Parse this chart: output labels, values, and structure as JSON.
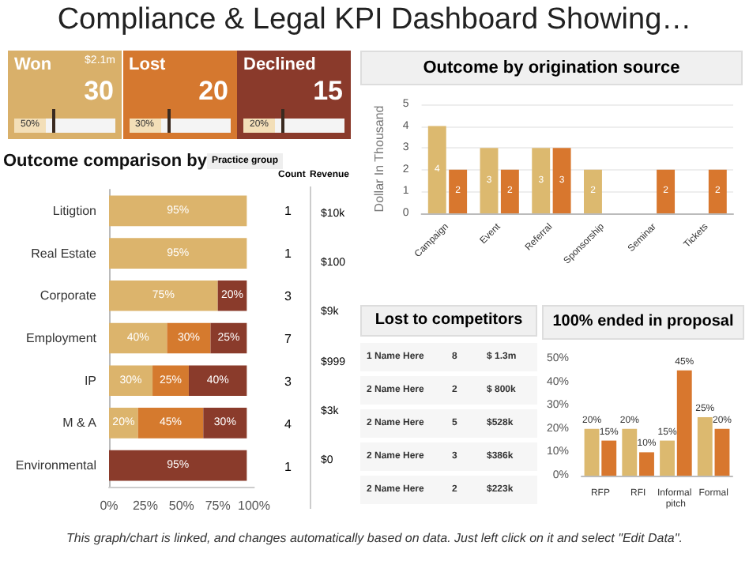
{
  "chart_data": [
    {
      "type": "other",
      "title": "Compliance & Legal KPI Dashboard Showing…",
      "categories": [
        "Won",
        "Lost",
        "Declined"
      ],
      "colors": [
        "#d9b06a",
        "#d5782f",
        "#8a3a2b"
      ],
      "annotations": [
        {
          "text": "30",
          "x": "Won"
        },
        {
          "text": "$2.1m",
          "x": "Won"
        },
        {
          "text": "50%",
          "x": "Won"
        },
        {
          "text": "20",
          "x": "Lost"
        },
        {
          "text": "30%",
          "x": "Lost"
        },
        {
          "text": "15",
          "x": "Declined"
        },
        {
          "text": "20%",
          "x": "Declined"
        },
        "This graph/chart is linked, and changes automatically based on data. Just left click on it and select \"Edit Data\"."
      ]
    },
    {
      "type": "bar",
      "orientation": "horizontal",
      "stacked": true,
      "title": "Outcome comparison by",
      "subtitle": "Practice group",
      "categories": [
        "Litigtion",
        "Real Estate",
        "Corporate",
        "Employment",
        "IP",
        "M & A",
        "Environmental"
      ],
      "series": [
        {
          "color": "#dcb46c",
          "values": [
            95,
            95,
            75,
            40,
            30,
            20,
            null
          ],
          "value_labels": [
            "95%",
            "95%",
            "75%",
            "40%",
            "30%",
            "20%",
            null
          ]
        },
        {
          "color": "#d57a2e",
          "values": [
            null,
            null,
            null,
            30,
            25,
            45,
            null
          ],
          "value_labels": [
            null,
            null,
            null,
            "30%",
            "25%",
            "45%",
            null
          ]
        },
        {
          "color": "#8a3b2b",
          "values": [
            null,
            null,
            20,
            25,
            40,
            30,
            95
          ],
          "value_labels": [
            null,
            null,
            "20%",
            "25%",
            "40%",
            "30%",
            "95%"
          ]
        }
      ],
      "xlim": [
        0,
        100
      ],
      "xticks": [
        {
          "value": 0,
          "label": "0%"
        },
        {
          "value": 25,
          "label": "25%"
        },
        {
          "value": 50,
          "label": "50%"
        },
        {
          "value": 75,
          "label": "75%"
        },
        {
          "value": 100,
          "label": "100%"
        }
      ],
      "annotations": [
        "Count",
        "Revenue",
        "1",
        "1",
        "3",
        "7",
        "3",
        "4",
        "1",
        "$10k",
        "$100",
        "$9k",
        "$999",
        "$3k",
        "$0"
      ]
    },
    {
      "type": "bar",
      "title": "Outcome by origination source",
      "ylabel": "Dollar In Thousand",
      "categories": [
        "Campaign",
        "Event",
        "Referral",
        "Sponsorship",
        "Seminar",
        "Tickets"
      ],
      "series": [
        {
          "color": "#dcb96f",
          "values": [
            4,
            3,
            3,
            2,
            null,
            null
          ]
        },
        {
          "color": "#d8772e",
          "values": [
            2,
            2,
            3,
            null,
            2,
            2
          ]
        }
      ],
      "ylim": [
        0,
        5
      ],
      "yticks": [
        0,
        1,
        2,
        3,
        4,
        5
      ],
      "grid": "y",
      "data_labels": true
    },
    {
      "type": "other",
      "title": "Lost to competitors",
      "annotations": [
        "1 Name Here",
        "8",
        "$ 1.3m",
        "2 Name Here",
        "2",
        "$ 800k",
        "2 Name Here",
        "5",
        "$528k",
        "2 Name Here",
        "3",
        "$386k",
        "2 Name Here",
        "2",
        "$223k"
      ]
    },
    {
      "type": "bar",
      "title": "100% ended in proposal",
      "categories": [
        "RFP",
        "RFI",
        "Informal pitch",
        "Formal"
      ],
      "series": [
        {
          "color": "#dcb96f",
          "values": [
            20,
            20,
            15,
            25
          ],
          "value_labels": [
            "20%",
            "20%",
            "15%",
            "25%"
          ]
        },
        {
          "color": "#d8772e",
          "values": [
            15,
            10,
            45,
            20
          ],
          "value_labels": [
            "15%",
            "10%",
            "45%",
            "20%"
          ]
        }
      ],
      "ylim": [
        0,
        50
      ],
      "yticks": [
        {
          "value": 0,
          "label": "0%"
        },
        {
          "value": 10,
          "label": "10%"
        },
        {
          "value": 20,
          "label": "20%"
        },
        {
          "value": 30,
          "label": "30%"
        },
        {
          "value": 40,
          "label": "40%"
        },
        {
          "value": 50,
          "label": "50%"
        }
      ]
    }
  ]
}
